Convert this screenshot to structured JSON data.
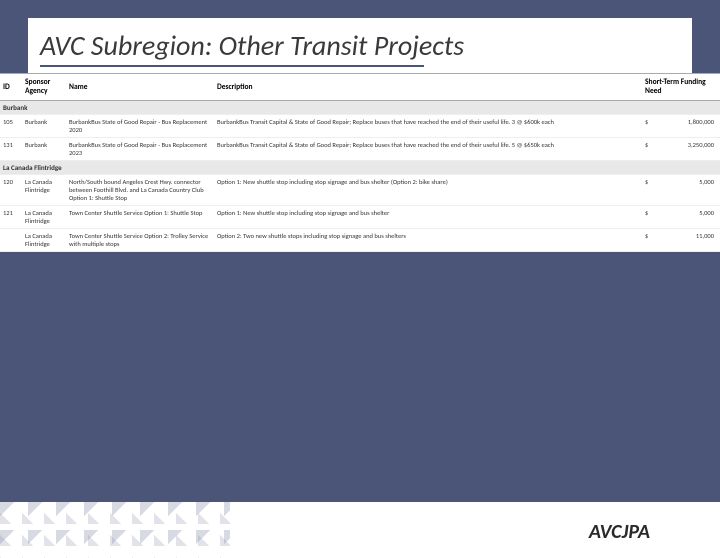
{
  "title": "AVC Subregion: Other Transit Projects",
  "footer_label": "AVCJPA",
  "columns": {
    "id": "ID",
    "agency": "Sponsor Agency",
    "name": "Name",
    "desc": "Description",
    "fund": "Short-Term Funding Need"
  },
  "groups": [
    {
      "label": "Burbank",
      "rows": [
        {
          "id": "105",
          "agency": "Burbank",
          "name": "BurbankBus State of Good Repair - Bus Replacement 2020",
          "desc": "BurbankBus Transit Capital & State of Good Repair; Replace buses that have reached the end of their useful life. 3 @ $600k each",
          "amount": "1,800,000"
        },
        {
          "id": "131",
          "agency": "Burbank",
          "name": "BurbankBus State of Good Repair - Bus Replacement 2023",
          "desc": "BurbankBus Transit Capital & State of Good Repair; Replace buses that have reached the end of their useful life. 5 @ $650k each",
          "amount": "3,250,000"
        }
      ]
    },
    {
      "label": "La Canada Flintridge",
      "rows": [
        {
          "id": "120",
          "agency": "La Canada Flintridge",
          "name": "North/South bound Angeles Crest Hwy. connector between Foothill Blvd. and La Canada Country Club Option 1: Shuttle Stop",
          "desc": "Option 1: New shuttle stop including stop signage and bus shelter (Option 2: bike share)",
          "amount": "5,000"
        },
        {
          "id": "121",
          "agency": "La Canada Flintridge",
          "name": "Town Center Shuttle Service Option 1: Shuttle Stop",
          "desc": "Option 1: New shuttle stop including stop signage and bus shelter",
          "amount": "5,000"
        },
        {
          "id": "",
          "agency": "La Canada Flintridge",
          "name": "Town Center Shuttle Service Option 2: Trolley Service with multiple stops",
          "desc": "Option 2: Two new shuttle stops including stop signage and bus shelters",
          "amount": "11,000"
        }
      ]
    }
  ]
}
